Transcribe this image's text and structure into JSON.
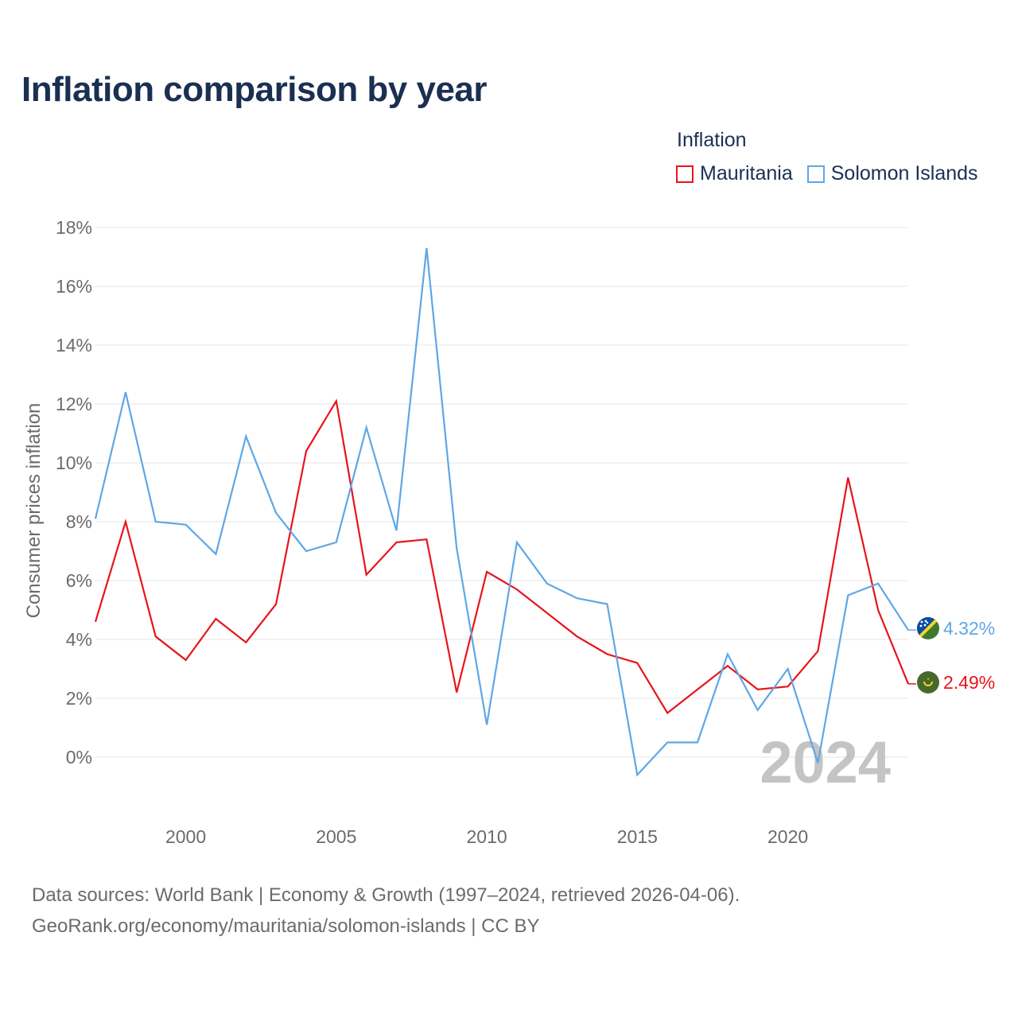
{
  "title": "Inflation comparison by year",
  "legend": {
    "title": "Inflation",
    "items": [
      {
        "name": "Mauritania",
        "color": "#e8141a"
      },
      {
        "name": "Solomon Islands",
        "color": "#5ea7e6"
      }
    ]
  },
  "watermark_year": "2024",
  "footer": {
    "line1": "Data sources: World Bank | Economy & Growth (1997–2024, retrieved 2026-04-06).",
    "line2": "GeoRank.org/economy/mauritania/solomon-islands | CC BY"
  },
  "end_labels": {
    "mauritania": "2.49%",
    "solomon": "4.32%"
  },
  "flags": {
    "mauritania": "mauritania-flag-icon",
    "solomon": "solomon-islands-flag-icon"
  },
  "chart_data": {
    "type": "line",
    "title": "Inflation comparison by year",
    "xlabel": "",
    "ylabel": "Consumer prices inflation",
    "xlim": [
      1997,
      2024
    ],
    "ylim": [
      -2,
      18
    ],
    "x_ticks": [
      2000,
      2005,
      2010,
      2015,
      2020
    ],
    "y_ticks": [
      0,
      2,
      4,
      6,
      8,
      10,
      12,
      14,
      16,
      18
    ],
    "y_tick_labels": [
      "0%",
      "2%",
      "4%",
      "6%",
      "8%",
      "10%",
      "12%",
      "14%",
      "16%",
      "18%"
    ],
    "x": [
      1997,
      1998,
      1999,
      2000,
      2001,
      2002,
      2003,
      2004,
      2005,
      2006,
      2007,
      2008,
      2009,
      2010,
      2011,
      2012,
      2013,
      2014,
      2015,
      2016,
      2017,
      2018,
      2019,
      2020,
      2021,
      2022,
      2023,
      2024
    ],
    "series": [
      {
        "name": "Mauritania",
        "color": "#e8141a",
        "values": [
          4.6,
          8.0,
          4.1,
          3.3,
          4.7,
          3.9,
          5.2,
          10.4,
          12.1,
          6.2,
          7.3,
          7.4,
          2.2,
          6.3,
          5.7,
          4.9,
          4.1,
          3.5,
          3.2,
          1.5,
          2.3,
          3.1,
          2.3,
          2.4,
          3.6,
          9.5,
          5.0,
          2.49
        ]
      },
      {
        "name": "Solomon Islands",
        "color": "#5ea7e6",
        "values": [
          8.1,
          12.4,
          8.0,
          7.9,
          6.9,
          10.9,
          8.3,
          7.0,
          7.3,
          11.2,
          7.7,
          17.3,
          7.1,
          1.1,
          7.3,
          5.9,
          5.4,
          5.2,
          -0.6,
          0.5,
          0.5,
          3.5,
          1.6,
          3.0,
          -0.2,
          5.5,
          5.9,
          4.32
        ]
      }
    ],
    "grid": true,
    "legend_position": "top-right"
  }
}
